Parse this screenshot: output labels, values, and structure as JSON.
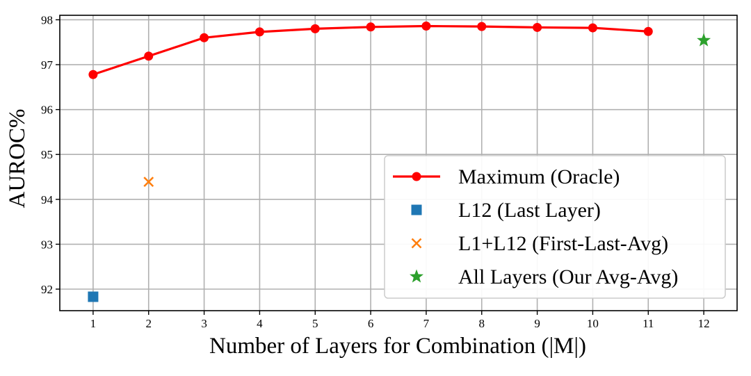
{
  "chart_data": {
    "type": "line",
    "title": "",
    "xlabel": "Number of Layers for Combination (|M|)",
    "ylabel": "AUROC%",
    "xlim": [
      0.4,
      12.6
    ],
    "ylim": [
      91.52,
      98.1
    ],
    "xticks": [
      1,
      2,
      3,
      4,
      5,
      6,
      7,
      8,
      9,
      10,
      11,
      12
    ],
    "yticks": [
      92,
      93,
      94,
      95,
      96,
      97,
      98
    ],
    "grid": true,
    "legend_position": "lower-right",
    "series": [
      {
        "name": "Maximum (Oracle)",
        "kind": "line-marker",
        "marker": "circle",
        "color": "#ff0000",
        "x": [
          1,
          2,
          3,
          4,
          5,
          6,
          7,
          8,
          9,
          10,
          11
        ],
        "y": [
          96.78,
          97.19,
          97.6,
          97.73,
          97.8,
          97.84,
          97.86,
          97.85,
          97.83,
          97.82,
          97.74
        ]
      },
      {
        "name": "L12 (Last Layer)",
        "kind": "scatter",
        "marker": "square",
        "color": "#1f77b4",
        "x": [
          1
        ],
        "y": [
          91.83
        ]
      },
      {
        "name": "L1+L12 (First-Last-Avg)",
        "kind": "scatter",
        "marker": "x",
        "color": "#ff7f0e",
        "x": [
          2
        ],
        "y": [
          94.39
        ]
      },
      {
        "name": "All Layers (Our Avg-Avg)",
        "kind": "scatter",
        "marker": "star",
        "color": "#2ca02c",
        "x": [
          12
        ],
        "y": [
          97.54
        ]
      }
    ]
  }
}
